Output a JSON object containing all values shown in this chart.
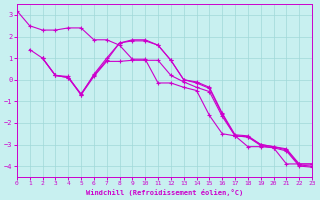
{
  "xlabel": "Windchill (Refroidissement éolien,°C)",
  "background_color": "#c8f0f0",
  "grid_color": "#a0d8d8",
  "line_color": "#cc00cc",
  "xlim": [
    0,
    23
  ],
  "ylim": [
    -4.5,
    3.5
  ],
  "xticks": [
    0,
    1,
    2,
    3,
    4,
    5,
    6,
    7,
    8,
    9,
    10,
    11,
    12,
    13,
    14,
    15,
    16,
    17,
    18,
    19,
    20,
    21,
    22,
    23
  ],
  "yticks": [
    -4,
    -3,
    -2,
    -1,
    0,
    1,
    2,
    3
  ],
  "series": [
    {
      "x": [
        0,
        1,
        2,
        3,
        4,
        5,
        6,
        7,
        8,
        9,
        10,
        11,
        12,
        13,
        14,
        15,
        16,
        17,
        18,
        19,
        20,
        21,
        22,
        23
      ],
      "y": [
        3.2,
        2.5,
        2.3,
        2.3,
        2.4,
        2.4,
        1.85,
        1.85,
        1.6,
        0.95,
        0.95,
        -0.15,
        -0.15,
        -0.35,
        -0.5,
        -1.65,
        -2.5,
        -2.6,
        -3.1,
        -3.1,
        -3.15,
        -3.9,
        -3.9,
        -3.9
      ]
    },
    {
      "x": [
        1,
        2,
        3,
        4,
        5,
        6,
        7,
        8,
        9,
        10,
        11,
        12,
        13,
        14,
        15,
        16,
        17,
        18,
        19,
        20,
        21,
        22,
        23
      ],
      "y": [
        1.4,
        1.0,
        0.2,
        0.15,
        -0.7,
        0.25,
        1.0,
        1.7,
        1.85,
        1.85,
        1.6,
        0.9,
        0.0,
        -0.1,
        -0.35,
        -1.55,
        -2.55,
        -2.6,
        -3.0,
        -3.1,
        -3.2,
        -3.9,
        -3.9
      ]
    },
    {
      "x": [
        2,
        3,
        4,
        5,
        6,
        7,
        8,
        9,
        10,
        11,
        12,
        13,
        14,
        15,
        16,
        17,
        18,
        19,
        20,
        21,
        22,
        23
      ],
      "y": [
        1.0,
        0.2,
        0.1,
        -0.65,
        0.2,
        0.9,
        1.7,
        1.8,
        1.8,
        1.6,
        0.9,
        0.0,
        -0.15,
        -0.4,
        -1.6,
        -2.6,
        -2.65,
        -3.0,
        -3.1,
        -3.25,
        -3.95,
        -4.0
      ]
    },
    {
      "x": [
        2,
        3,
        4,
        5,
        6,
        7,
        8,
        9,
        10,
        11,
        12,
        13,
        14,
        15,
        16,
        17,
        18,
        19,
        20,
        21,
        22,
        23
      ],
      "y": [
        1.0,
        0.2,
        0.1,
        -0.7,
        0.15,
        0.85,
        0.85,
        0.9,
        0.9,
        0.9,
        0.2,
        -0.1,
        -0.35,
        -0.55,
        -1.7,
        -2.6,
        -2.65,
        -3.05,
        -3.15,
        -3.3,
        -4.0,
        -4.05
      ]
    }
  ]
}
